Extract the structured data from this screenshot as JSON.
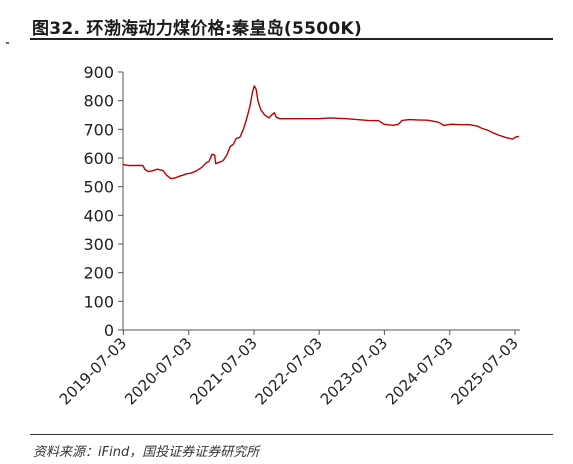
{
  "header": {
    "title": "图32. 环渤海动力煤价格:秦皇岛(5500K)"
  },
  "footer": {
    "source": "资料来源：iFind，国投证券证券研究所"
  },
  "chart_data": {
    "type": "line",
    "title": "",
    "xlabel": "",
    "ylabel": "",
    "ylim": [
      0,
      900
    ],
    "yticks": [
      0,
      100,
      200,
      300,
      400,
      500,
      600,
      700,
      800,
      900
    ],
    "xlim": [
      "2019-07-01",
      "2025-07-31"
    ],
    "xticks": [
      "2019-07-03",
      "2020-07-03",
      "2021-07-03",
      "2022-07-03",
      "2023-07-03",
      "2024-07-03",
      "2025-07-03"
    ],
    "grid": false,
    "legend": "none",
    "series": [
      {
        "color": "#c00000",
        "points": [
          [
            "2019-07-01",
            577
          ],
          [
            "2019-08-01",
            574
          ],
          [
            "2019-09-15",
            574
          ],
          [
            "2019-10-20",
            574
          ],
          [
            "2019-11-01",
            560
          ],
          [
            "2019-11-20",
            553
          ],
          [
            "2019-12-10",
            555
          ],
          [
            "2020-01-10",
            561
          ],
          [
            "2020-02-10",
            556
          ],
          [
            "2020-03-01",
            540
          ],
          [
            "2020-03-25",
            528
          ],
          [
            "2020-04-15",
            530
          ],
          [
            "2020-05-10",
            536
          ],
          [
            "2020-06-01",
            540
          ],
          [
            "2020-06-20",
            545
          ],
          [
            "2020-07-15",
            547
          ],
          [
            "2020-08-15",
            555
          ],
          [
            "2020-09-15",
            568
          ],
          [
            "2020-10-10",
            584
          ],
          [
            "2020-10-25",
            588
          ],
          [
            "2020-11-10",
            613
          ],
          [
            "2020-11-25",
            610
          ],
          [
            "2020-12-01",
            580
          ],
          [
            "2020-12-20",
            585
          ],
          [
            "2021-01-10",
            590
          ],
          [
            "2021-02-01",
            610
          ],
          [
            "2021-02-20",
            640
          ],
          [
            "2021-03-10",
            648
          ],
          [
            "2021-03-25",
            668
          ],
          [
            "2021-04-15",
            672
          ],
          [
            "2021-05-05",
            700
          ],
          [
            "2021-05-20",
            730
          ],
          [
            "2021-06-10",
            780
          ],
          [
            "2021-06-25",
            830
          ],
          [
            "2021-07-05",
            852
          ],
          [
            "2021-07-15",
            840
          ],
          [
            "2021-07-25",
            800
          ],
          [
            "2021-08-10",
            768
          ],
          [
            "2021-09-01",
            750
          ],
          [
            "2021-09-25",
            740
          ],
          [
            "2021-10-10",
            750
          ],
          [
            "2021-10-25",
            758
          ],
          [
            "2021-11-05",
            742
          ],
          [
            "2021-11-25",
            737
          ],
          [
            "2022-01-01",
            737
          ],
          [
            "2022-04-01",
            737
          ],
          [
            "2022-07-01",
            737
          ],
          [
            "2022-09-01",
            740
          ],
          [
            "2022-10-01",
            739
          ],
          [
            "2022-12-01",
            737
          ],
          [
            "2023-02-01",
            734
          ],
          [
            "2023-04-01",
            731
          ],
          [
            "2023-06-01",
            730
          ],
          [
            "2023-07-01",
            718
          ],
          [
            "2023-07-20",
            716
          ],
          [
            "2023-08-20",
            714
          ],
          [
            "2023-09-20",
            718
          ],
          [
            "2023-10-10",
            731
          ],
          [
            "2023-11-20",
            734
          ],
          [
            "2024-01-01",
            733
          ],
          [
            "2024-03-01",
            732
          ],
          [
            "2024-05-01",
            725
          ],
          [
            "2024-06-01",
            713
          ],
          [
            "2024-06-20",
            716
          ],
          [
            "2024-07-15",
            718
          ],
          [
            "2024-09-01",
            716
          ],
          [
            "2024-10-20",
            716
          ],
          [
            "2024-12-01",
            712
          ],
          [
            "2025-01-01",
            703
          ],
          [
            "2025-02-01",
            697
          ],
          [
            "2025-03-01",
            688
          ],
          [
            "2025-04-10",
            678
          ],
          [
            "2025-05-20",
            670
          ],
          [
            "2025-06-20",
            666
          ],
          [
            "2025-07-10",
            674
          ],
          [
            "2025-07-25",
            675
          ]
        ]
      }
    ]
  }
}
